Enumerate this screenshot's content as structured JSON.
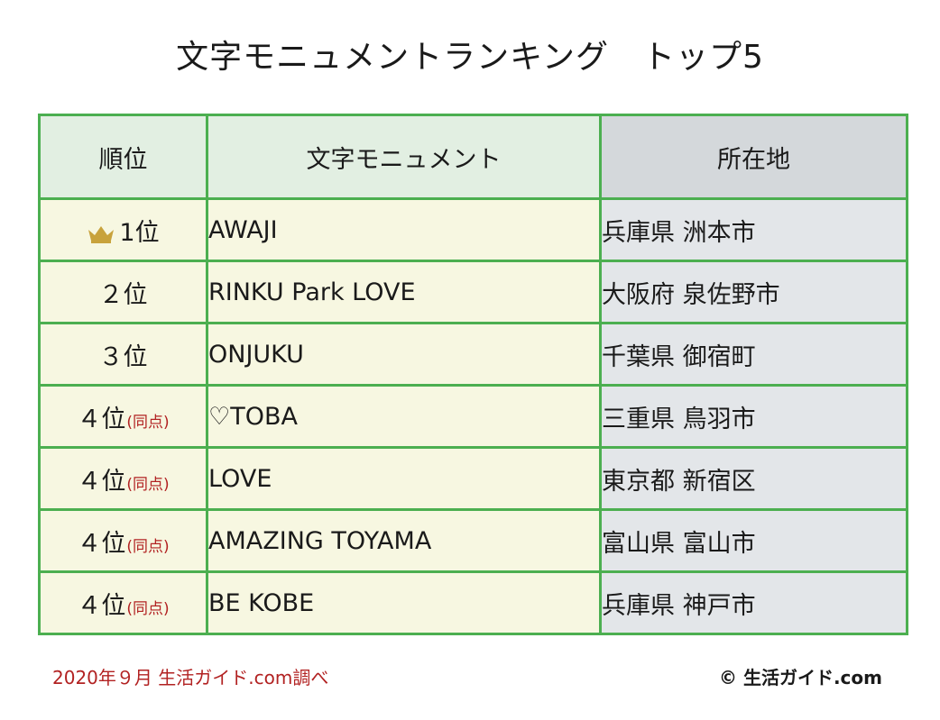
{
  "title": "文字モニュメントランキング　トップ5",
  "headers": {
    "rank": "順位",
    "name": "文字モニュメント",
    "place": "所在地"
  },
  "rows": [
    {
      "rank": "1位",
      "tie": "",
      "name": "AWAJI",
      "place": "兵庫県 洲本市",
      "crown": true
    },
    {
      "rank": "２位",
      "tie": "",
      "name": "RINKU Park LOVE",
      "place": "大阪府 泉佐野市",
      "crown": false
    },
    {
      "rank": "３位",
      "tie": "",
      "name": "ONJUKU",
      "place": "千葉県 御宿町",
      "crown": false
    },
    {
      "rank": "４位",
      "tie": "(同点)",
      "name": "♡TOBA",
      "place": "三重県 鳥羽市",
      "crown": false
    },
    {
      "rank": "４位",
      "tie": "(同点)",
      "name": "LOVE",
      "place": "東京都 新宿区",
      "crown": false
    },
    {
      "rank": "４位",
      "tie": "(同点)",
      "name": "AMAZING TOYAMA",
      "place": "富山県 富山市",
      "crown": false
    },
    {
      "rank": "４位",
      "tie": "(同点)",
      "name": "BE KOBE",
      "place": "兵庫県 神戸市",
      "crown": false
    }
  ],
  "footer": {
    "source": "2020年９月 生活ガイド.com調べ",
    "copyright": "© 生活ガイド.com"
  },
  "colors": {
    "border": "#4caf50",
    "header_green": "#e2efe2",
    "header_gray": "#d4d8db",
    "cell_cream": "#f7f7e1",
    "cell_gray": "#e3e6e9",
    "tie_red": "#b22222",
    "crown_gold": "#c8a23c"
  }
}
